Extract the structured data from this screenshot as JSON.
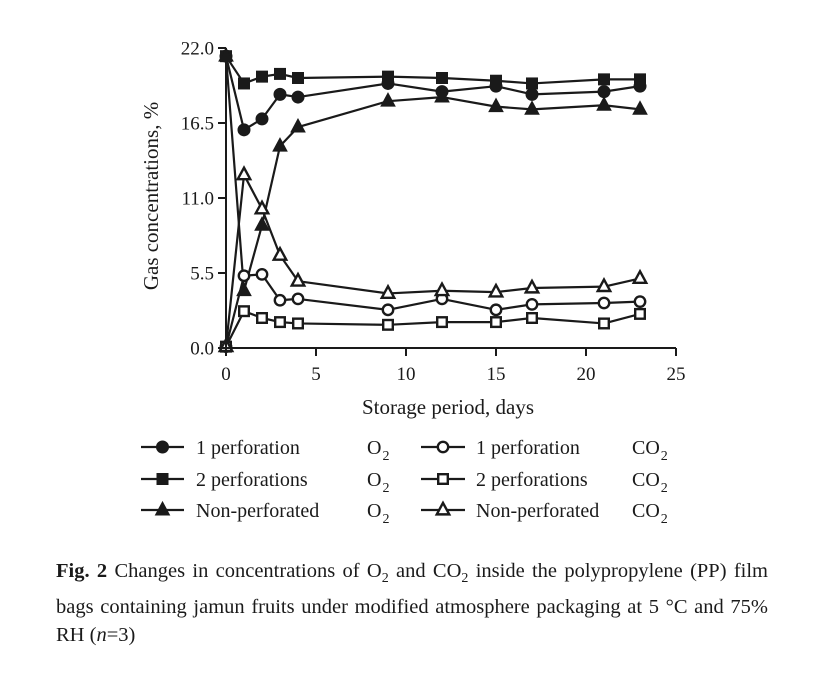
{
  "chart_data": {
    "type": "line",
    "ylabel": "Gas concentrations, %",
    "xlabel": "Storage period, days",
    "xlim": [
      0,
      25
    ],
    "ylim": [
      0,
      22
    ],
    "xticks": [
      "0",
      "5",
      "10",
      "15",
      "20",
      "25"
    ],
    "yticks": [
      "0.0",
      "5.5",
      "11.0",
      "16.5",
      "22.0"
    ],
    "grid": false,
    "legend_position": "bottom",
    "series": [
      {
        "name": "1 perforation",
        "gas": "O",
        "gas_sub": "2",
        "marker": "circle",
        "fill": "filled",
        "x": [
          0,
          1,
          2,
          3,
          4,
          9,
          12,
          15,
          17,
          21,
          23
        ],
        "y": [
          21.4,
          16.0,
          16.8,
          18.6,
          18.4,
          19.4,
          18.8,
          19.2,
          18.6,
          18.8,
          19.2
        ]
      },
      {
        "name": "2 perforations",
        "gas": "O",
        "gas_sub": "2",
        "marker": "square",
        "fill": "filled",
        "x": [
          0,
          1,
          2,
          3,
          4,
          9,
          12,
          15,
          17,
          21,
          23
        ],
        "y": [
          21.4,
          19.4,
          19.9,
          20.1,
          19.8,
          19.9,
          19.8,
          19.6,
          19.4,
          19.7,
          19.7
        ]
      },
      {
        "name": "Non-perforated",
        "gas": "O",
        "gas_sub": "2",
        "marker": "triangle",
        "fill": "filled",
        "x": [
          0,
          1,
          2,
          3,
          4,
          9,
          12,
          15,
          17,
          21,
          23
        ],
        "y": [
          21.4,
          4.2,
          9.0,
          14.8,
          16.2,
          18.1,
          18.4,
          17.7,
          17.5,
          17.8,
          17.5
        ]
      },
      {
        "name": "1 perforation",
        "gas": "CO",
        "gas_sub": "2",
        "marker": "circle",
        "fill": "open",
        "x": [
          0,
          1,
          2,
          3,
          4,
          9,
          12,
          15,
          17,
          21,
          23
        ],
        "y": [
          0.1,
          5.3,
          5.4,
          3.5,
          3.6,
          2.8,
          3.6,
          2.8,
          3.2,
          3.3,
          3.4
        ]
      },
      {
        "name": "2 perforations",
        "gas": "CO",
        "gas_sub": "2",
        "marker": "square",
        "fill": "open",
        "x": [
          0,
          1,
          2,
          3,
          4,
          9,
          12,
          15,
          17,
          21,
          23
        ],
        "y": [
          0.1,
          2.7,
          2.2,
          1.9,
          1.8,
          1.7,
          1.9,
          1.9,
          2.2,
          1.8,
          2.5
        ]
      },
      {
        "name": "Non-perforated",
        "gas": "CO",
        "gas_sub": "2",
        "marker": "triangle",
        "fill": "open",
        "x": [
          0,
          1,
          2,
          3,
          4,
          9,
          12,
          15,
          17,
          21,
          23
        ],
        "y": [
          0.1,
          12.7,
          10.2,
          6.8,
          4.9,
          4.0,
          4.2,
          4.1,
          4.4,
          4.5,
          5.1
        ]
      }
    ]
  },
  "caption": {
    "label": "Fig. 2",
    "text_1": " Changes in concentrations of O",
    "sub_1": "2",
    "text_2": " and CO",
    "sub_2": "2",
    "text_3": " inside the polypropylene (PP) film bags containing jamun fruits under modified atmosphere packaging at 5 °C and 75% RH (",
    "italic_n": "n",
    "text_4": "=3)"
  }
}
